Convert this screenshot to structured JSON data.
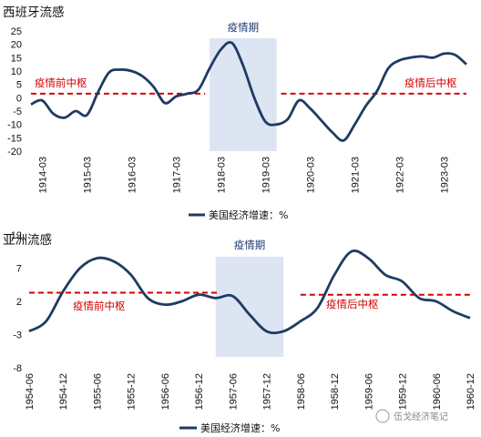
{
  "chart_data": [
    {
      "type": "line",
      "title": "西班牙流感",
      "yticks": [
        -20,
        -15,
        -10,
        -5,
        0,
        5,
        10,
        15,
        20,
        25
      ],
      "ylim": [
        -20,
        25
      ],
      "xlim": [
        1914.0,
        1923.75
      ],
      "xtick_labels": [
        "1914-03",
        "1915-03",
        "1916-03",
        "1917-03",
        "1918-03",
        "1919-03",
        "1920-03",
        "1921-03",
        "1922-03",
        "1923-03"
      ],
      "xtick_values": [
        1914.25,
        1915.25,
        1916.25,
        1917.25,
        1918.25,
        1919.25,
        1920.25,
        1921.25,
        1922.25,
        1923.25
      ],
      "shaded_region": {
        "label": "疫情期",
        "x_start": 1918.0,
        "x_end": 1919.5
      },
      "reference_lines": [
        {
          "label": "疫情前中枢",
          "y": 1.5,
          "x_start": 1914.0,
          "x_end": 1917.9
        },
        {
          "label": "疫情后中枢",
          "y": 1.5,
          "x_start": 1919.6,
          "x_end": 1923.75
        }
      ],
      "series": [
        {
          "name": "美国经济增速：%",
          "color": "#1f3b63",
          "x": [
            1914.0,
            1914.25,
            1914.5,
            1914.75,
            1915.0,
            1915.25,
            1915.5,
            1915.75,
            1916.0,
            1916.25,
            1916.5,
            1916.75,
            1917.0,
            1917.25,
            1917.5,
            1917.75,
            1918.0,
            1918.25,
            1918.5,
            1918.75,
            1919.0,
            1919.25,
            1919.5,
            1919.75,
            1920.0,
            1920.25,
            1920.5,
            1920.75,
            1921.0,
            1921.25,
            1921.5,
            1921.75,
            1922.0,
            1922.25,
            1922.5,
            1922.75,
            1923.0,
            1923.25,
            1923.5,
            1923.75
          ],
          "y": [
            -2.5,
            -1.0,
            -6.0,
            -7.5,
            -5.0,
            -6.5,
            2.0,
            9.5,
            10.5,
            10.0,
            8.0,
            4.0,
            -2.0,
            0.5,
            1.5,
            3.0,
            11.0,
            18.0,
            20.5,
            12.0,
            0.0,
            -9.0,
            -10.0,
            -8.0,
            -1.0,
            -4.0,
            -8.5,
            -13.0,
            -16.0,
            -10.0,
            -3.0,
            2.5,
            11.0,
            14.0,
            15.0,
            15.5,
            15.0,
            16.5,
            16.0,
            12.5
          ]
        }
      ]
    },
    {
      "type": "line",
      "title": "亚洲流感",
      "yticks": [
        -8,
        -3,
        2,
        7,
        12
      ],
      "ylim": [
        -8,
        12
      ],
      "xlim": [
        1954.5,
        1961.0
      ],
      "xtick_labels": [
        "1954-06",
        "1954-12",
        "1955-06",
        "1955-12",
        "1956-06",
        "1956-12",
        "1957-06",
        "1957-12",
        "1958-06",
        "1958-12",
        "1959-06",
        "1959-12",
        "1960-06",
        "1960-12"
      ],
      "xtick_values": [
        1954.5,
        1955.0,
        1955.5,
        1956.0,
        1956.5,
        1957.0,
        1957.5,
        1958.0,
        1958.5,
        1959.0,
        1959.5,
        1960.0,
        1960.5,
        1961.0
      ],
      "shaded_region": {
        "label": "疫情期",
        "x_start": 1957.25,
        "x_end": 1958.25
      },
      "reference_lines": [
        {
          "label": "疫情前中枢",
          "y": 3.3,
          "x_start": 1954.5,
          "x_end": 1957.3
        },
        {
          "label": "疫情后中枢",
          "y": 3.0,
          "x_start": 1958.5,
          "x_end": 1961.0
        }
      ],
      "series": [
        {
          "name": "美国经济增速：%",
          "color": "#1f3b63",
          "x": [
            1954.5,
            1954.75,
            1955.0,
            1955.25,
            1955.5,
            1955.75,
            1956.0,
            1956.25,
            1956.5,
            1956.75,
            1957.0,
            1957.25,
            1957.5,
            1957.75,
            1958.0,
            1958.25,
            1958.5,
            1958.75,
            1959.0,
            1959.25,
            1959.5,
            1959.75,
            1960.0,
            1960.25,
            1960.5,
            1960.75,
            1961.0
          ],
          "y": [
            -2.5,
            -1.0,
            3.5,
            7.0,
            8.5,
            8.0,
            6.0,
            2.5,
            1.5,
            2.0,
            3.0,
            2.5,
            2.8,
            0.0,
            -2.5,
            -2.5,
            -1.0,
            1.0,
            6.0,
            9.5,
            8.5,
            6.0,
            5.0,
            2.5,
            2.0,
            0.5,
            -0.5
          ]
        }
      ]
    }
  ],
  "legend": {
    "text": "美国经济增速：%"
  },
  "watermark": {
    "text": "伍戈经济笔记"
  }
}
